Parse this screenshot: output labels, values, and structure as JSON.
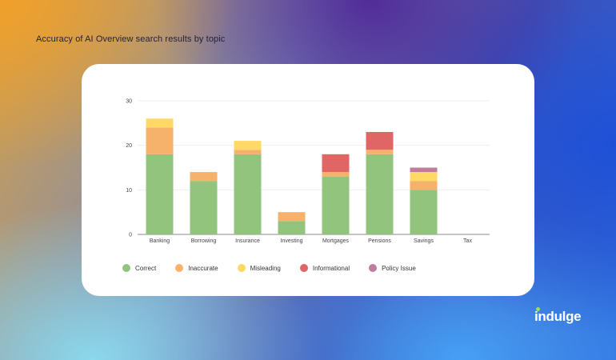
{
  "title": "Accuracy of AI Overview search results by topic",
  "logo_text": "indulge",
  "colors": {
    "Correct": "#93c47d",
    "Inaccurate": "#f6b26b",
    "Misleading": "#ffd966",
    "Informational": "#e06666",
    "Policy Issue": "#c27ba0",
    "logo_accent": "#9ae34a"
  },
  "chart_data": {
    "type": "bar",
    "stacked": true,
    "categories": [
      "Banking",
      "Borrowing",
      "Insurance",
      "Investing",
      "Mortgages",
      "Pensions",
      "Savings",
      "Tax"
    ],
    "series": [
      {
        "name": "Correct",
        "values": [
          18,
          12,
          18,
          3,
          13,
          18,
          10,
          0
        ]
      },
      {
        "name": "Inaccurate",
        "values": [
          6,
          2,
          1,
          2,
          1,
          1,
          2,
          0
        ]
      },
      {
        "name": "Misleading",
        "values": [
          2,
          0,
          2,
          0,
          0,
          0,
          2,
          0
        ]
      },
      {
        "name": "Informational",
        "values": [
          0,
          0,
          0,
          0,
          4,
          4,
          0,
          0
        ]
      },
      {
        "name": "Policy Issue",
        "values": [
          0,
          0,
          0,
          0,
          0,
          0,
          1,
          0
        ]
      }
    ],
    "yticks": [
      0,
      10,
      20,
      30
    ],
    "ylim": [
      0,
      30
    ],
    "xlabel": "",
    "ylabel": "",
    "grid": true,
    "legend_position": "bottom-left"
  }
}
